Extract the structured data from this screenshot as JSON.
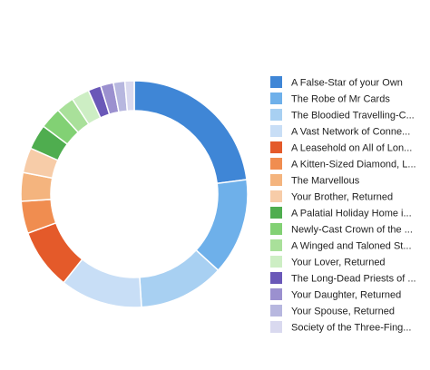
{
  "chart_data": {
    "type": "pie",
    "variant": "donut",
    "legend_position": "right",
    "categories": [
      "A False-Star of your Own",
      "The Robe of Mr Cards",
      "The Bloodied Travelling-C...",
      "A Vast Network of Conne...",
      "A Leasehold on All of Lon...",
      "A Kitten-Sized Diamond, L...",
      "The Marvellous",
      "Your Brother, Returned",
      "A Palatial Holiday Home i...",
      "Newly-Cast Crown of the ...",
      "A Winged and Taloned St...",
      "Your Lover, Returned",
      "The Long-Dead Priests of ...",
      "Your Daughter, Returned",
      "Your Spouse, Returned",
      "Society of the Three-Fing..."
    ],
    "values": [
      22.5,
      13.5,
      12.0,
      11.5,
      8.5,
      4.5,
      4.0,
      3.5,
      3.5,
      3.0,
      2.5,
      2.5,
      1.8,
      1.8,
      1.6,
      1.3
    ],
    "colors": [
      "#3f86d6",
      "#6eb0ea",
      "#a8d0f2",
      "#c8def6",
      "#e45a2a",
      "#f08d50",
      "#f4b47e",
      "#f7cca8",
      "#4fad4f",
      "#82d174",
      "#a9e09a",
      "#cdeec4",
      "#6a58b8",
      "#9b90cf",
      "#b7b7df",
      "#d9d9ef"
    ]
  }
}
